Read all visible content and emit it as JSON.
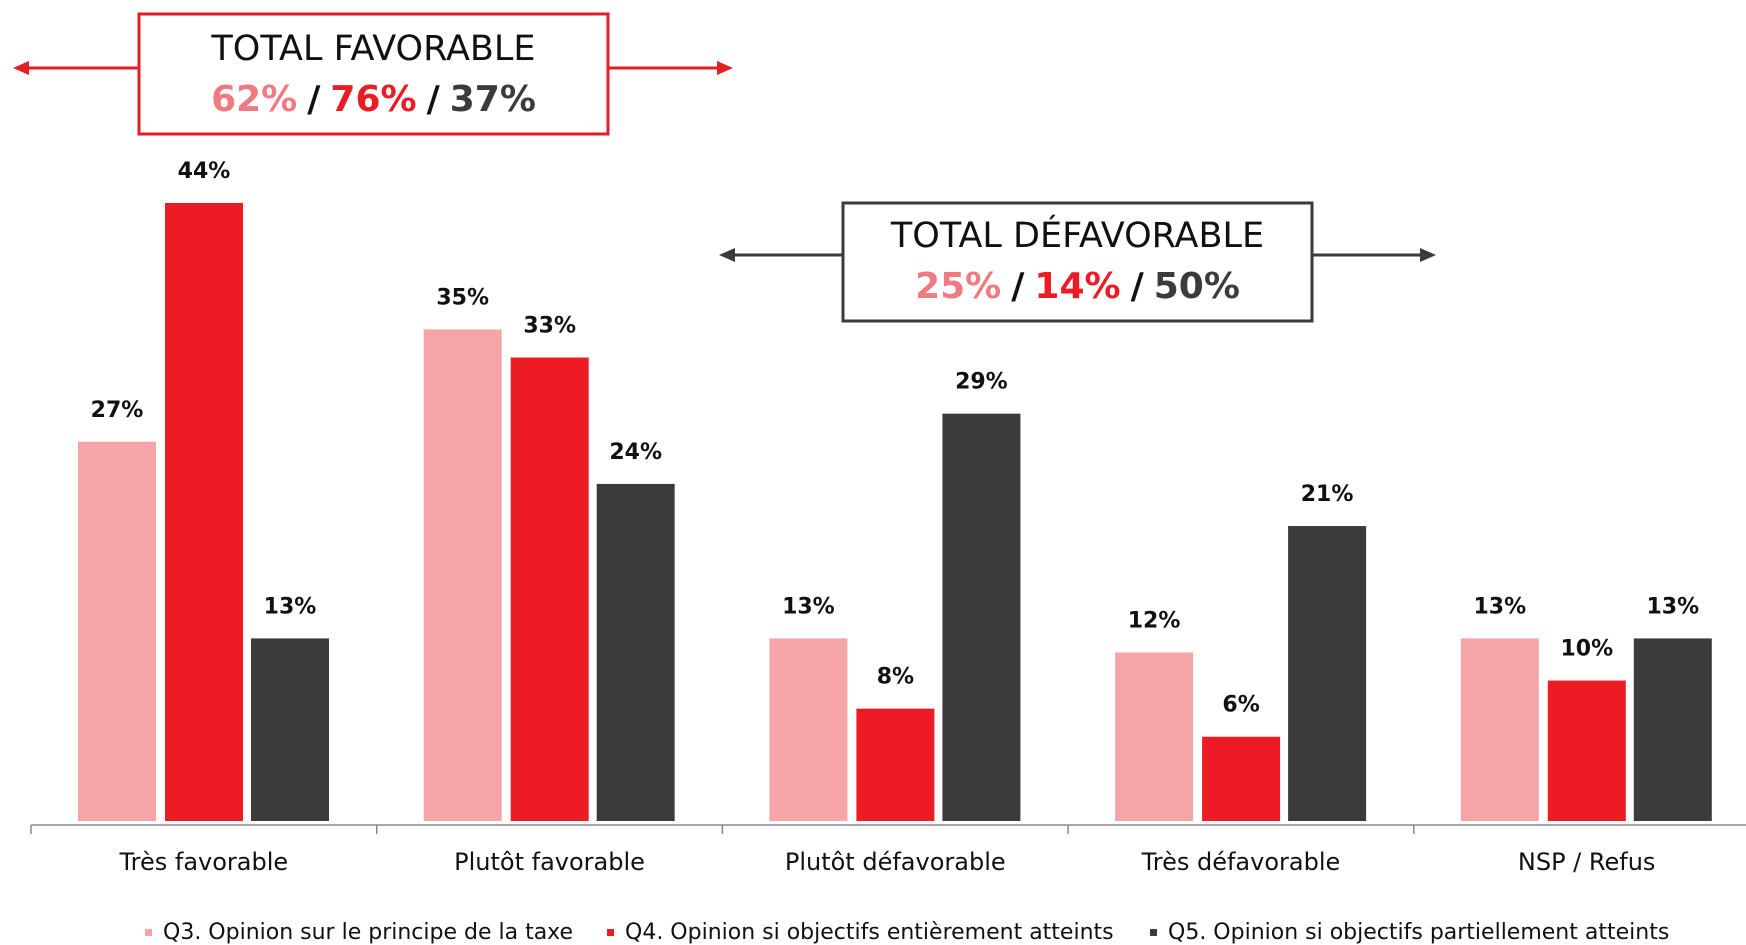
{
  "chart_data": {
    "type": "bar",
    "categories": [
      "Très favorable",
      "Plutôt favorable",
      "Plutôt défavorable",
      "Très défavorable",
      "NSP / Refus"
    ],
    "series": [
      {
        "name": "Q3. Opinion sur le principe de la taxe",
        "color": "#f5a5a7",
        "values": [
          27,
          35,
          13,
          12,
          13
        ],
        "value_labels": [
          "27%",
          "35%",
          "13%",
          "12%",
          "13%"
        ]
      },
      {
        "name": "Q4. Opinion si objectifs entièrement atteints",
        "color": "#ed1c24",
        "values": [
          44,
          33,
          8,
          6,
          10
        ],
        "value_labels": [
          "44%",
          "33%",
          "8%",
          "6%",
          "10%"
        ]
      },
      {
        "name": "Q5. Opinion si objectifs partiellement atteints",
        "color": "#3b3b3b",
        "values": [
          13,
          24,
          29,
          21,
          13
        ],
        "value_labels": [
          "13%",
          "24%",
          "29%",
          "21%",
          "13%"
        ]
      }
    ],
    "annotations": [
      {
        "title": "TOTAL FAVORABLE",
        "labels": [
          "62%",
          "76%",
          "37%"
        ],
        "separator": "/",
        "border_color": "#e31e24"
      },
      {
        "title": "TOTAL DÉFAVORABLE",
        "labels": [
          "25%",
          "14%",
          "50%"
        ],
        "separator": "/",
        "border_color": "#3b3b3b"
      }
    ],
    "annotation_colors": [
      "#f07a80",
      "#ed1c24",
      "#3b3b3b"
    ]
  }
}
